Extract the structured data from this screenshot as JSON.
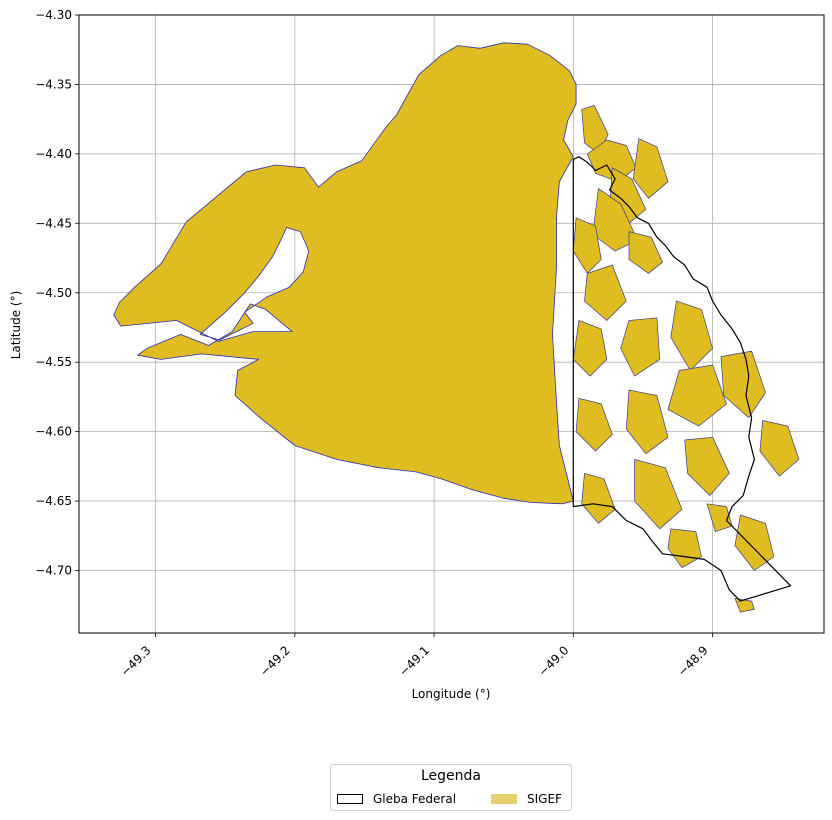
{
  "chart_data": {
    "type": "map",
    "xlabel": "Longitude (°)",
    "ylabel": "Latitude (°)",
    "xlim": [
      -49.355,
      -48.82
    ],
    "ylim": [
      -4.745,
      -4.3
    ],
    "xticks": [
      "−49.3",
      "−49.2",
      "−49.1",
      "−49.0",
      "−48.9"
    ],
    "yticks": [
      "−4.30",
      "−4.35",
      "−4.40",
      "−4.45",
      "−4.50",
      "−4.55",
      "−4.60",
      "−4.65",
      "−4.70"
    ],
    "grid": true,
    "legend": {
      "title": "Legenda",
      "position": "bottom-center",
      "entries": [
        {
          "label": "Gleba Federal",
          "style": "outline"
        },
        {
          "label": "SIGEF",
          "style": "fill"
        }
      ]
    },
    "colors": {
      "sigef_fill": "#DFBC1F",
      "sigef_edge": "#2B2BB5",
      "parcel_edge": "#3B3B8A",
      "gleba_edge": "#000000",
      "legend_sigef": "#E6CF6D"
    },
    "gleba_federal_boundary": [
      [
        -49.0,
        -4.404
      ],
      [
        -48.996,
        -4.402
      ],
      [
        -48.99,
        -4.406
      ],
      [
        -48.984,
        -4.412
      ],
      [
        -48.976,
        -4.408
      ],
      [
        -48.97,
        -4.418
      ],
      [
        -48.974,
        -4.426
      ],
      [
        -48.966,
        -4.432
      ],
      [
        -48.96,
        -4.438
      ],
      [
        -48.954,
        -4.446
      ],
      [
        -48.946,
        -4.45
      ],
      [
        -48.94,
        -4.46
      ],
      [
        -48.934,
        -4.466
      ],
      [
        -48.928,
        -4.474
      ],
      [
        -48.92,
        -4.48
      ],
      [
        -48.914,
        -4.49
      ],
      [
        -48.904,
        -4.496
      ],
      [
        -48.9,
        -4.506
      ],
      [
        -48.894,
        -4.516
      ],
      [
        -48.886,
        -4.526
      ],
      [
        -48.88,
        -4.536
      ],
      [
        -48.876,
        -4.548
      ],
      [
        -48.874,
        -4.56
      ],
      [
        -48.876,
        -4.574
      ],
      [
        -48.872,
        -4.59
      ],
      [
        -48.874,
        -4.604
      ],
      [
        -48.87,
        -4.62
      ],
      [
        -48.874,
        -4.632
      ],
      [
        -48.878,
        -4.646
      ],
      [
        -48.886,
        -4.654
      ],
      [
        -48.89,
        -4.664
      ],
      [
        -48.844,
        -4.711
      ],
      [
        -48.88,
        -4.722
      ],
      [
        -48.888,
        -4.714
      ],
      [
        -48.894,
        -4.7
      ],
      [
        -48.906,
        -4.692
      ],
      [
        -48.92,
        -4.69
      ],
      [
        -48.936,
        -4.688
      ],
      [
        -48.944,
        -4.678
      ],
      [
        -48.95,
        -4.67
      ],
      [
        -48.962,
        -4.664
      ],
      [
        -48.972,
        -4.654
      ],
      [
        -48.986,
        -4.652
      ],
      [
        -49.0,
        -4.654
      ],
      [
        -49.0,
        -4.404
      ]
    ],
    "sigef_main_region": [
      [
        -49.326,
        -4.507
      ],
      [
        -49.315,
        -4.496
      ],
      [
        -49.296,
        -4.479
      ],
      [
        -49.278,
        -4.449
      ],
      [
        -49.235,
        -4.413
      ],
      [
        -49.214,
        -4.408
      ],
      [
        -49.193,
        -4.41
      ],
      [
        -49.183,
        -4.424
      ],
      [
        -49.17,
        -4.413
      ],
      [
        -49.152,
        -4.405
      ],
      [
        -49.134,
        -4.38
      ],
      [
        -49.127,
        -4.372
      ],
      [
        -49.111,
        -4.343
      ],
      [
        -49.095,
        -4.329
      ],
      [
        -49.083,
        -4.322
      ],
      [
        -49.067,
        -4.324
      ],
      [
        -49.05,
        -4.32
      ],
      [
        -49.033,
        -4.321
      ],
      [
        -49.017,
        -4.329
      ],
      [
        -49.003,
        -4.34
      ],
      [
        -48.998,
        -4.35
      ],
      [
        -48.998,
        -4.364
      ],
      [
        -49.004,
        -4.376
      ],
      [
        -49.007,
        -4.39
      ],
      [
        -49.0,
        -4.402
      ],
      [
        -49.01,
        -4.42
      ],
      [
        -49.012,
        -4.445
      ],
      [
        -49.012,
        -4.48
      ],
      [
        -49.015,
        -4.53
      ],
      [
        -49.012,
        -4.58
      ],
      [
        -49.01,
        -4.61
      ],
      [
        -49.0,
        -4.65
      ],
      [
        -49.008,
        -4.652
      ],
      [
        -49.03,
        -4.651
      ],
      [
        -49.05,
        -4.648
      ],
      [
        -49.072,
        -4.642
      ],
      [
        -49.095,
        -4.634
      ],
      [
        -49.113,
        -4.629
      ],
      [
        -49.14,
        -4.626
      ],
      [
        -49.17,
        -4.62
      ],
      [
        -49.2,
        -4.61
      ],
      [
        -49.225,
        -4.59
      ],
      [
        -49.243,
        -4.574
      ],
      [
        -49.241,
        -4.556
      ],
      [
        -49.226,
        -4.548
      ],
      [
        -49.267,
        -4.544
      ],
      [
        -49.296,
        -4.548
      ],
      [
        -49.313,
        -4.545
      ],
      [
        -49.306,
        -4.54
      ],
      [
        -49.282,
        -4.53
      ],
      [
        -49.262,
        -4.538
      ],
      [
        -49.245,
        -4.528
      ],
      [
        -49.232,
        -4.508
      ],
      [
        -49.221,
        -4.512
      ],
      [
        -49.202,
        -4.528
      ],
      [
        -49.23,
        -4.528
      ],
      [
        -49.255,
        -4.535
      ],
      [
        -49.285,
        -4.52
      ],
      [
        -49.325,
        -4.524
      ],
      [
        -49.33,
        -4.516
      ]
    ],
    "sigef_holes": [
      [
        [
          -49.206,
          -4.453
        ],
        [
          -49.196,
          -4.456
        ],
        [
          -49.19,
          -4.47
        ],
        [
          -49.194,
          -4.485
        ],
        [
          -49.204,
          -4.496
        ],
        [
          -49.22,
          -4.503
        ],
        [
          -49.236,
          -4.514
        ],
        [
          -49.23,
          -4.522
        ],
        [
          -49.254,
          -4.534
        ],
        [
          -49.268,
          -4.53
        ],
        [
          -49.25,
          -4.514
        ],
        [
          -49.236,
          -4.5
        ],
        [
          -49.226,
          -4.488
        ],
        [
          -49.216,
          -4.474
        ],
        [
          -49.21,
          -4.462
        ]
      ]
    ],
    "sigef_parcels": [
      [
        [
          -48.994,
          -4.368
        ],
        [
          -48.985,
          -4.365
        ],
        [
          -48.975,
          -4.386
        ],
        [
          -48.982,
          -4.4
        ],
        [
          -48.992,
          -4.392
        ]
      ],
      [
        [
          -48.99,
          -4.4
        ],
        [
          -48.976,
          -4.39
        ],
        [
          -48.962,
          -4.394
        ],
        [
          -48.955,
          -4.41
        ],
        [
          -48.968,
          -4.42
        ],
        [
          -48.984,
          -4.414
        ]
      ],
      [
        [
          -48.953,
          -4.389
        ],
        [
          -48.94,
          -4.395
        ],
        [
          -48.932,
          -4.42
        ],
        [
          -48.946,
          -4.432
        ],
        [
          -48.957,
          -4.418
        ]
      ],
      [
        [
          -48.972,
          -4.41
        ],
        [
          -48.958,
          -4.418
        ],
        [
          -48.948,
          -4.44
        ],
        [
          -48.96,
          -4.45
        ],
        [
          -48.974,
          -4.442
        ]
      ],
      [
        [
          -48.982,
          -4.425
        ],
        [
          -48.966,
          -4.436
        ],
        [
          -48.954,
          -4.462
        ],
        [
          -48.97,
          -4.47
        ],
        [
          -48.986,
          -4.458
        ]
      ],
      [
        [
          -48.96,
          -4.456
        ],
        [
          -48.944,
          -4.46
        ],
        [
          -48.936,
          -4.478
        ],
        [
          -48.946,
          -4.486
        ],
        [
          -48.96,
          -4.476
        ]
      ],
      [
        [
          -48.998,
          -4.446
        ],
        [
          -48.984,
          -4.452
        ],
        [
          -48.98,
          -4.476
        ],
        [
          -48.99,
          -4.486
        ],
        [
          -49.0,
          -4.47
        ]
      ],
      [
        [
          -48.99,
          -4.486
        ],
        [
          -48.972,
          -4.48
        ],
        [
          -48.962,
          -4.506
        ],
        [
          -48.976,
          -4.52
        ],
        [
          -48.992,
          -4.506
        ]
      ],
      [
        [
          -48.996,
          -4.52
        ],
        [
          -48.98,
          -4.526
        ],
        [
          -48.976,
          -4.548
        ],
        [
          -48.988,
          -4.56
        ],
        [
          -49.0,
          -4.548
        ]
      ],
      [
        [
          -48.96,
          -4.52
        ],
        [
          -48.94,
          -4.518
        ],
        [
          -48.938,
          -4.548
        ],
        [
          -48.956,
          -4.56
        ],
        [
          -48.966,
          -4.54
        ]
      ],
      [
        [
          -48.926,
          -4.506
        ],
        [
          -48.908,
          -4.512
        ],
        [
          -48.9,
          -4.54
        ],
        [
          -48.916,
          -4.556
        ],
        [
          -48.93,
          -4.532
        ]
      ],
      [
        [
          -48.924,
          -4.556
        ],
        [
          -48.9,
          -4.552
        ],
        [
          -48.89,
          -4.58
        ],
        [
          -48.91,
          -4.596
        ],
        [
          -48.932,
          -4.584
        ]
      ],
      [
        [
          -48.894,
          -4.546
        ],
        [
          -48.872,
          -4.542
        ],
        [
          -48.862,
          -4.572
        ],
        [
          -48.874,
          -4.59
        ],
        [
          -48.892,
          -4.574
        ]
      ],
      [
        [
          -48.96,
          -4.57
        ],
        [
          -48.94,
          -4.574
        ],
        [
          -48.932,
          -4.604
        ],
        [
          -48.948,
          -4.616
        ],
        [
          -48.962,
          -4.598
        ]
      ],
      [
        [
          -48.996,
          -4.576
        ],
        [
          -48.98,
          -4.58
        ],
        [
          -48.972,
          -4.602
        ],
        [
          -48.984,
          -4.614
        ],
        [
          -48.998,
          -4.6
        ]
      ],
      [
        [
          -48.956,
          -4.62
        ],
        [
          -48.934,
          -4.626
        ],
        [
          -48.922,
          -4.656
        ],
        [
          -48.938,
          -4.67
        ],
        [
          -48.956,
          -4.65
        ]
      ],
      [
        [
          -48.92,
          -4.606
        ],
        [
          -48.9,
          -4.604
        ],
        [
          -48.888,
          -4.63
        ],
        [
          -48.902,
          -4.646
        ],
        [
          -48.918,
          -4.63
        ]
      ],
      [
        [
          -48.992,
          -4.63
        ],
        [
          -48.978,
          -4.634
        ],
        [
          -48.97,
          -4.656
        ],
        [
          -48.982,
          -4.666
        ],
        [
          -48.994,
          -4.652
        ]
      ],
      [
        [
          -48.864,
          -4.592
        ],
        [
          -48.846,
          -4.596
        ],
        [
          -48.838,
          -4.62
        ],
        [
          -48.852,
          -4.632
        ],
        [
          -48.866,
          -4.614
        ]
      ],
      [
        [
          -48.88,
          -4.66
        ],
        [
          -48.862,
          -4.666
        ],
        [
          -48.856,
          -4.69
        ],
        [
          -48.87,
          -4.7
        ],
        [
          -48.884,
          -4.682
        ]
      ],
      [
        [
          -48.93,
          -4.67
        ],
        [
          -48.912,
          -4.672
        ],
        [
          -48.908,
          -4.69
        ],
        [
          -48.922,
          -4.698
        ],
        [
          -48.932,
          -4.684
        ]
      ],
      [
        [
          -48.884,
          -4.72
        ],
        [
          -48.872,
          -4.722
        ],
        [
          -48.87,
          -4.728
        ],
        [
          -48.88,
          -4.73
        ]
      ],
      [
        [
          -48.904,
          -4.652
        ],
        [
          -48.89,
          -4.654
        ],
        [
          -48.886,
          -4.668
        ],
        [
          -48.898,
          -4.672
        ]
      ]
    ]
  }
}
